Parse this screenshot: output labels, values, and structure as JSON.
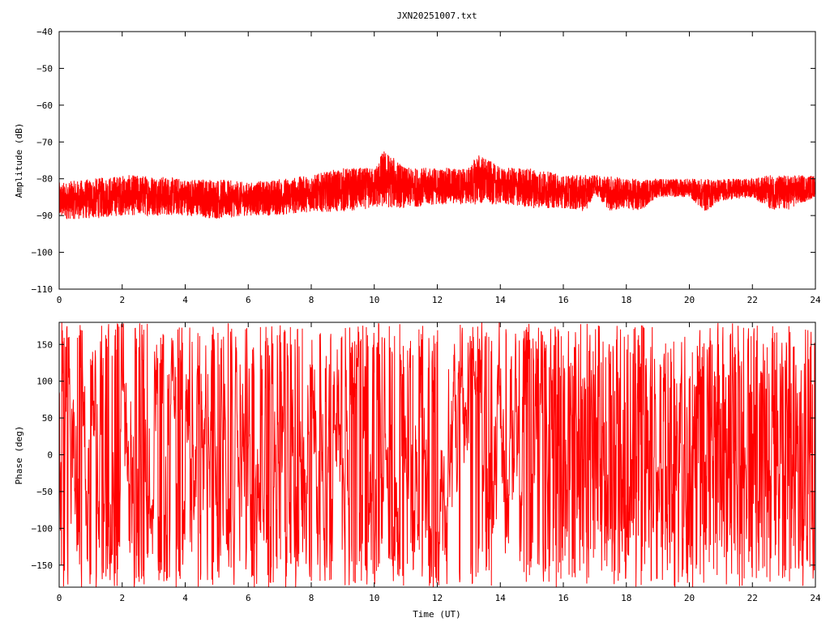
{
  "title": "JXN20251007.txt",
  "colors": {
    "series": "#ff0000",
    "axis": "#000000",
    "background": "#ffffff"
  },
  "chart_data": [
    {
      "type": "line",
      "ylabel": "Amplitude (dB)",
      "xlabel": "",
      "xlim": [
        0,
        24
      ],
      "ylim": [
        -110,
        -40
      ],
      "x_ticks": [
        0,
        2,
        4,
        6,
        8,
        10,
        12,
        14,
        16,
        18,
        20,
        22,
        24
      ],
      "y_ticks": [
        -40,
        -50,
        -60,
        -70,
        -80,
        -90,
        -100,
        -110
      ],
      "grid": false,
      "series": [
        {
          "color": "#ff0000",
          "envelope_x": [
            0,
            1,
            2,
            3,
            4,
            5,
            6,
            7,
            8,
            9,
            10,
            10.3,
            11,
            12,
            13,
            13.3,
            14,
            15,
            16,
            16.7,
            17,
            17.5,
            18,
            18.4,
            19,
            20,
            20.5,
            21,
            22,
            22.5,
            23,
            24
          ],
          "envelope_max": [
            -81,
            -80,
            -79,
            -79,
            -80,
            -80,
            -81,
            -80,
            -79,
            -77,
            -77,
            -72,
            -77,
            -77,
            -77,
            -73,
            -77,
            -77,
            -79,
            -79,
            -79,
            -79,
            -80,
            -80,
            -80,
            -80,
            -80,
            -80,
            -80,
            -79,
            -79,
            -79
          ],
          "envelope_min": [
            -91,
            -91,
            -90,
            -90,
            -90,
            -91,
            -90,
            -90,
            -89,
            -89,
            -88,
            -88,
            -88,
            -87,
            -87,
            -87,
            -87,
            -88,
            -88,
            -89,
            -84,
            -89,
            -88,
            -89,
            -85,
            -85,
            -89,
            -86,
            -85,
            -88,
            -89,
            -85
          ]
        }
      ]
    },
    {
      "type": "line",
      "ylabel": "Phase (deg)",
      "xlabel": "Time (UT)",
      "xlim": [
        0,
        24
      ],
      "ylim": [
        -180,
        180
      ],
      "x_ticks": [
        0,
        2,
        4,
        6,
        8,
        10,
        12,
        14,
        16,
        18,
        20,
        22,
        24
      ],
      "y_ticks": [
        150,
        100,
        50,
        0,
        -50,
        -100,
        -150
      ],
      "grid": false,
      "series": [
        {
          "color": "#ff0000",
          "range": [
            -180,
            180
          ],
          "note_visible": ""
        }
      ]
    }
  ]
}
